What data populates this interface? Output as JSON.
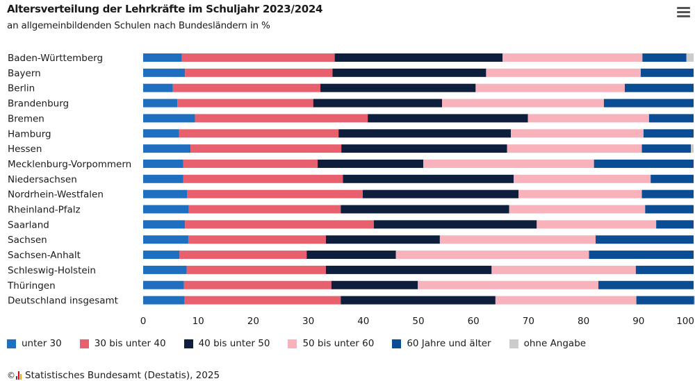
{
  "header": {
    "title": "Altersverteilung der Lehrkräfte im Schuljahr 2023/2024",
    "subtitle": "an allgemeinbildenden Schulen nach Bundesländern in %",
    "menu_icon": "hamburger-menu-icon"
  },
  "chart_data": {
    "type": "bar",
    "orientation": "horizontal",
    "stacked": true,
    "categories": [
      "Baden-Württemberg",
      "Bayern",
      "Berlin",
      "Brandenburg",
      "Bremen",
      "Hamburg",
      "Hessen",
      "Mecklenburg-Vorpommern",
      "Niedersachsen",
      "Nordrhein-Westfalen",
      "Rheinland-Pfalz",
      "Saarland",
      "Sachsen",
      "Sachsen-Anhalt",
      "Schleswig-Holstein",
      "Thüringen",
      "Deutschland insgesamt"
    ],
    "series": [
      {
        "name": "unter 30",
        "color": "#1f6fc1",
        "values": [
          7.0,
          7.6,
          5.4,
          6.2,
          9.4,
          6.5,
          8.6,
          7.3,
          7.3,
          8.0,
          8.3,
          7.6,
          8.2,
          6.6,
          7.9,
          7.4,
          7.5
        ]
      },
      {
        "name": "30 bis unter 40",
        "color": "#e8606e",
        "values": [
          27.8,
          26.8,
          26.8,
          24.7,
          31.4,
          29.0,
          27.4,
          24.4,
          29.0,
          31.9,
          27.6,
          34.3,
          25.0,
          23.1,
          25.3,
          26.8,
          28.4
        ]
      },
      {
        "name": "40 bis unter 50",
        "color": "#0e1f3e",
        "values": [
          30.5,
          27.9,
          28.2,
          23.4,
          29.1,
          31.3,
          30.1,
          19.2,
          31.0,
          28.3,
          30.6,
          29.6,
          20.7,
          16.2,
          30.1,
          15.7,
          28.1
        ]
      },
      {
        "name": "50 bis unter 60",
        "color": "#f7b2bb",
        "values": [
          25.4,
          28.1,
          27.1,
          29.4,
          22.0,
          24.1,
          24.5,
          31.0,
          24.9,
          22.4,
          24.7,
          21.7,
          28.3,
          35.1,
          26.2,
          32.8,
          25.6
        ]
      },
      {
        "name": "60 Jahre und älter",
        "color": "#0b4d94",
        "values": [
          8.0,
          9.6,
          12.5,
          16.3,
          8.1,
          9.1,
          8.9,
          18.1,
          7.8,
          9.4,
          8.8,
          6.8,
          17.8,
          19.0,
          10.5,
          17.3,
          10.5
        ]
      },
      {
        "name": "ohne Angabe",
        "color": "#cccccc",
        "values": [
          1.3,
          0.0,
          0.0,
          0.0,
          0.0,
          0.0,
          0.5,
          0.0,
          0.0,
          0.0,
          0.0,
          0.0,
          0.0,
          0.0,
          0.0,
          0.0,
          0.4
        ]
      }
    ],
    "x_ticks": [
      "0",
      "10",
      "20",
      "30",
      "40",
      "50",
      "60",
      "70",
      "80",
      "90",
      "100"
    ],
    "xlim": [
      0,
      100
    ],
    "legend_position": "bottom-left",
    "grid": false
  },
  "footer": {
    "copyright_symbol": "©",
    "logo_icon": "destatis-logo-icon",
    "source": "Statistisches Bundesamt (Destatis), 2025"
  }
}
